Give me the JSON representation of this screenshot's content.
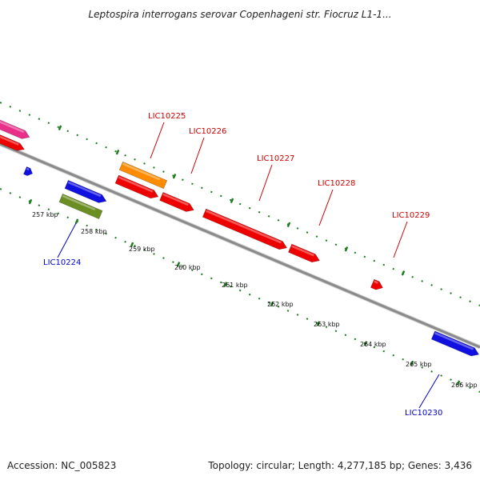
{
  "title": "Leptospira interrogans serovar Copenhageni str. Fiocruz L1-1...",
  "footer": {
    "accession": "Accession: NC_005823",
    "summary": "Topology: circular; Length: 4,277,185 bp; Genes: 3,436"
  },
  "colors": {
    "backbone": "#8a8a8a",
    "tick": "#1e7a1e",
    "label_top": "#cc0000",
    "label_bottom": "#0000cc"
  },
  "ticks": [
    {
      "label": "257 kbp"
    },
    {
      "label": "258 kbp"
    },
    {
      "label": "259 kbp"
    },
    {
      "label": "260 kbp"
    },
    {
      "label": "261 kbp"
    },
    {
      "label": "262 kbp"
    },
    {
      "label": "263 kbp"
    },
    {
      "label": "264 kbp"
    },
    {
      "label": "265 kbp"
    },
    {
      "label": "266 kbp"
    }
  ],
  "gene_labels": [
    {
      "name": "LIC10225"
    },
    {
      "name": "LIC10226"
    },
    {
      "name": "LIC10227"
    },
    {
      "name": "LIC10228"
    },
    {
      "name": "LIC10229"
    },
    {
      "name": "LIC10224"
    },
    {
      "name": "LIC10230"
    }
  ],
  "features": [
    {
      "color": "#e8308a"
    },
    {
      "color": "#ee0000"
    },
    {
      "color": "#1010e0"
    },
    {
      "color": "#1010e0"
    },
    {
      "color": "#6b8e23"
    },
    {
      "color": "#ff8c00"
    },
    {
      "color": "#ee0000"
    },
    {
      "color": "#ee0000"
    },
    {
      "color": "#ee0000"
    },
    {
      "color": "#ee0000"
    },
    {
      "color": "#ee0000"
    },
    {
      "color": "#1010e0"
    }
  ]
}
